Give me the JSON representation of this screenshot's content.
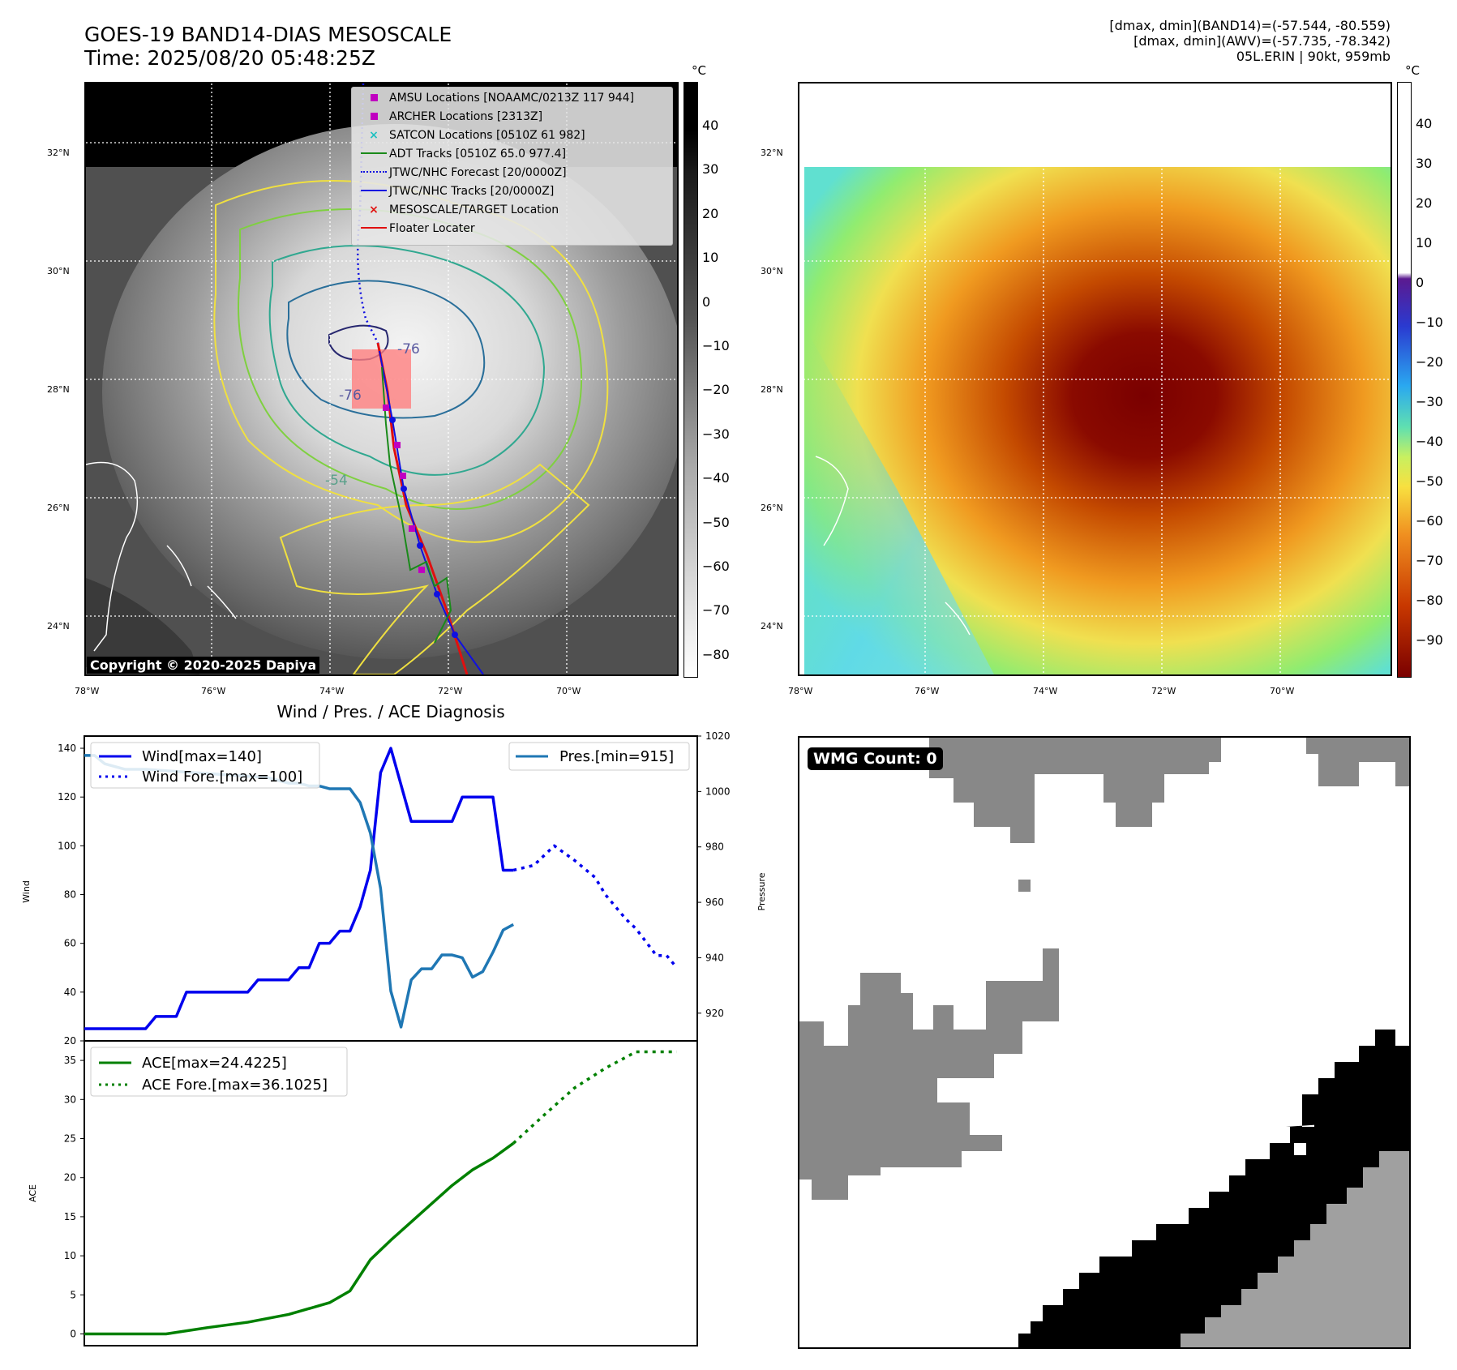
{
  "header": {
    "title_line1": "GOES-19 BAND14-DIAS MESOSCALE",
    "title_line2": "Time: 2025/08/20 05:48:25Z",
    "info_line1": "[dmax, dmin](BAND14)=(-57.544, -80.559)",
    "info_line2": "[dmax, dmin](AWV)=(-57.735, -78.342)",
    "info_line3": "05L.ERIN | 90kt, 959mb"
  },
  "map_left": {
    "copyright": "Copyright © 2020-2025 Dapiya",
    "lat_labels": [
      "32°N",
      "30°N",
      "28°N",
      "26°N",
      "24°N"
    ],
    "lon_labels": [
      "78°W",
      "76°W",
      "74°W",
      "72°W",
      "70°W"
    ],
    "contour_labels": [
      "-76",
      "-76",
      "-54"
    ],
    "legend": [
      {
        "label": "AMSU Locations [NOAAMC/0213Z 117 944]",
        "marker": "square",
        "color": "#c000c0"
      },
      {
        "label": "ARCHER Locations [2313Z]",
        "marker": "square",
        "color": "#c000c0"
      },
      {
        "label": "SATCON Locations [0510Z 61 982]",
        "marker": "x",
        "color": "#20c0c0"
      },
      {
        "label": "ADT Tracks [0510Z 65.0 977.4]",
        "marker": "line",
        "color": "#1a8a1a"
      },
      {
        "label": "JTWC/NHC Forecast [20/0000Z]",
        "marker": "dotted",
        "color": "#1010e0"
      },
      {
        "label": "JTWC/NHC Tracks [20/0000Z]",
        "marker": "line-dot",
        "color": "#1010e0"
      },
      {
        "label": "MESOSCALE/TARGET Location",
        "marker": "x",
        "color": "#e01010"
      },
      {
        "label": "Floater Locater",
        "marker": "line",
        "color": "#e01010"
      }
    ],
    "colorbar": {
      "unit": "°C",
      "ticks": [
        "40",
        "30",
        "20",
        "10",
        "0",
        "−10",
        "−20",
        "−30",
        "−40",
        "−50",
        "−60",
        "−70",
        "−80"
      ]
    }
  },
  "map_right": {
    "lat_labels": [
      "32°N",
      "30°N",
      "28°N",
      "26°N",
      "24°N"
    ],
    "lon_labels": [
      "78°W",
      "76°W",
      "74°W",
      "72°W",
      "70°W"
    ],
    "colorbar": {
      "unit": "°C",
      "ticks": [
        "40",
        "30",
        "20",
        "10",
        "0",
        "−10",
        "−20",
        "−30",
        "−40",
        "−50",
        "−60",
        "−70",
        "−80",
        "−90"
      ]
    }
  },
  "wmg": {
    "badge": "WMG Count: 0"
  },
  "chart_data": [
    {
      "type": "line",
      "title": "Wind / Pres. / ACE Diagnosis",
      "ylabel": "Wind",
      "y2label": "Pressure",
      "ylim": [
        20,
        145
      ],
      "y2lim": [
        910,
        1020
      ],
      "xlim": [
        0,
        60
      ],
      "yticks": [
        20,
        40,
        60,
        80,
        100,
        120,
        140
      ],
      "y2ticks": [
        920,
        940,
        960,
        980,
        1000,
        1020
      ],
      "series": [
        {
          "name": "Wind[max=140]",
          "color": "#0000ee",
          "style": "solid",
          "axis": "y",
          "x": [
            0,
            6,
            7,
            9,
            10,
            11,
            16,
            17,
            18,
            20,
            21,
            22,
            23,
            24,
            25,
            26,
            27,
            28,
            29,
            30,
            32,
            33,
            36,
            37,
            40,
            41,
            42
          ],
          "y": [
            25,
            25,
            30,
            30,
            40,
            40,
            40,
            45,
            45,
            45,
            50,
            50,
            60,
            60,
            65,
            65,
            75,
            90,
            130,
            140,
            110,
            110,
            110,
            120,
            120,
            90,
            90
          ]
        },
        {
          "name": "Wind Fore.[max=100]",
          "color": "#0000ee",
          "style": "dotted",
          "axis": "y",
          "x": [
            42,
            44,
            46,
            48,
            50,
            51,
            53,
            54,
            56,
            57,
            58
          ],
          "y": [
            90,
            92,
            100,
            94,
            87,
            80,
            70,
            66,
            55,
            55,
            50
          ]
        },
        {
          "name": "Pres.[min=915]",
          "color": "#1f77b4",
          "style": "solid",
          "axis": "y2",
          "x": [
            0,
            1,
            2,
            4,
            6,
            10,
            14,
            18,
            20,
            21,
            22,
            23,
            24,
            25,
            26,
            27,
            28,
            29,
            30,
            31,
            32,
            33,
            34,
            35,
            36,
            37,
            38,
            39,
            40,
            41,
            42
          ],
          "y": [
            1013,
            1013,
            1010,
            1008,
            1008,
            1007,
            1006,
            1005,
            1003,
            1003,
            1002,
            1002,
            1001,
            1001,
            1001,
            996,
            985,
            965,
            928,
            915,
            932,
            936,
            936,
            941,
            941,
            940,
            933,
            935,
            942,
            950,
            952
          ]
        }
      ]
    },
    {
      "type": "line",
      "ylabel": "ACE",
      "ylim": [
        -1.5,
        37.5
      ],
      "xlim": [
        0,
        60
      ],
      "yticks": [
        0,
        5,
        10,
        15,
        20,
        25,
        30,
        35
      ],
      "series": [
        {
          "name": "ACE[max=24.4225]",
          "color": "#008000",
          "style": "solid",
          "x": [
            0,
            4,
            8,
            12,
            16,
            20,
            24,
            26,
            27,
            28,
            30,
            33,
            36,
            38,
            40,
            42
          ],
          "y": [
            0,
            0,
            0,
            0.8,
            1.5,
            2.5,
            4,
            5.5,
            7.5,
            9.5,
            12,
            15.5,
            19,
            21,
            22.5,
            24.4
          ]
        },
        {
          "name": "ACE Fore.[max=36.1025]",
          "color": "#008000",
          "style": "dotted",
          "x": [
            42,
            45,
            48,
            51,
            54,
            57,
            58
          ],
          "y": [
            24.4,
            28,
            31.5,
            34,
            36.1,
            36.1,
            36.1
          ]
        }
      ]
    }
  ]
}
